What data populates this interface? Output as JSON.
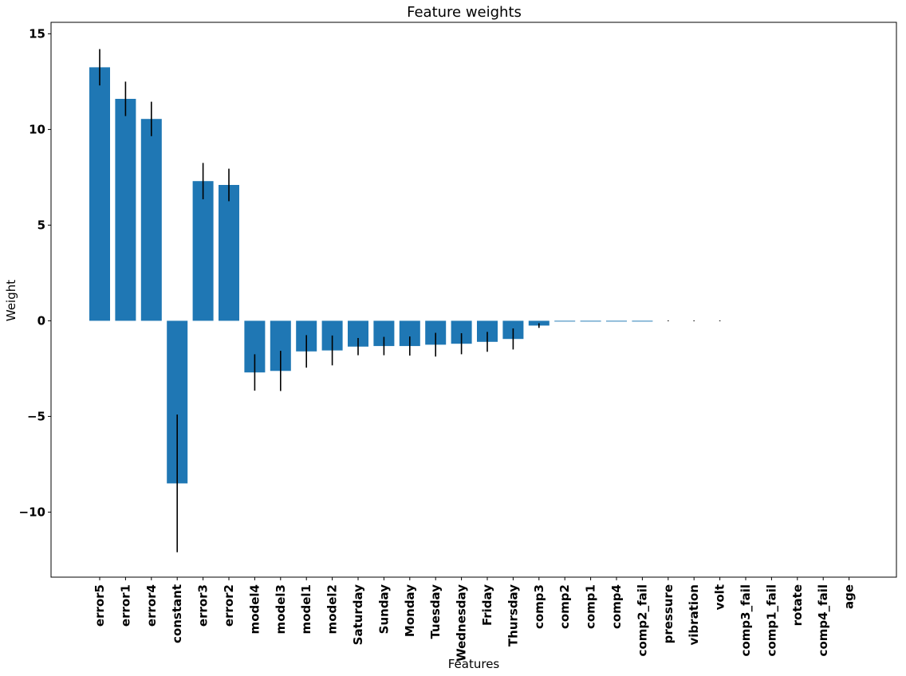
{
  "chart_data": {
    "type": "bar",
    "title": "Feature weights",
    "xlabel": "Features",
    "ylabel": "Weight",
    "ylim": [
      -13.4,
      15.6
    ],
    "yticks": [
      15,
      10,
      5,
      0,
      -5,
      -10
    ],
    "ytick_labels": [
      "15",
      "10",
      "5",
      "0",
      "−5",
      "−10"
    ],
    "bar_color": "#1f77b4",
    "error_color": "#000000",
    "grid": false,
    "categories": [
      "error5",
      "error1",
      "error4",
      "constant",
      "error3",
      "error2",
      "model4",
      "model3",
      "model1",
      "model2",
      "Saturday",
      "Sunday",
      "Monday",
      "Tuesday",
      "Wednesday",
      "Friday",
      "Thursday",
      "comp3",
      "comp2",
      "comp1",
      "comp4",
      "comp2_fail",
      "pressure",
      "vibration",
      "volt",
      "comp3_fail",
      "comp1_fail",
      "rotate",
      "comp4_fail",
      "age"
    ],
    "values": [
      13.25,
      11.6,
      10.55,
      -8.5,
      7.3,
      7.1,
      -2.7,
      -2.62,
      -1.6,
      -1.55,
      -1.35,
      -1.32,
      -1.32,
      -1.25,
      -1.2,
      -1.1,
      -0.95,
      -0.25,
      -0.04,
      -0.04,
      -0.04,
      -0.04,
      0.0,
      0.0,
      0.0,
      0.0,
      0.0,
      0.0,
      0.0,
      0.0
    ],
    "errors": [
      0.95,
      0.9,
      0.9,
      3.6,
      0.95,
      0.85,
      0.95,
      1.05,
      0.85,
      0.78,
      0.45,
      0.48,
      0.5,
      0.62,
      0.55,
      0.52,
      0.55,
      0.12,
      0.0,
      0.0,
      0.0,
      0.0,
      0.02,
      0.02,
      0.02,
      0.0,
      0.0,
      0.0,
      0.0,
      0.0
    ]
  }
}
